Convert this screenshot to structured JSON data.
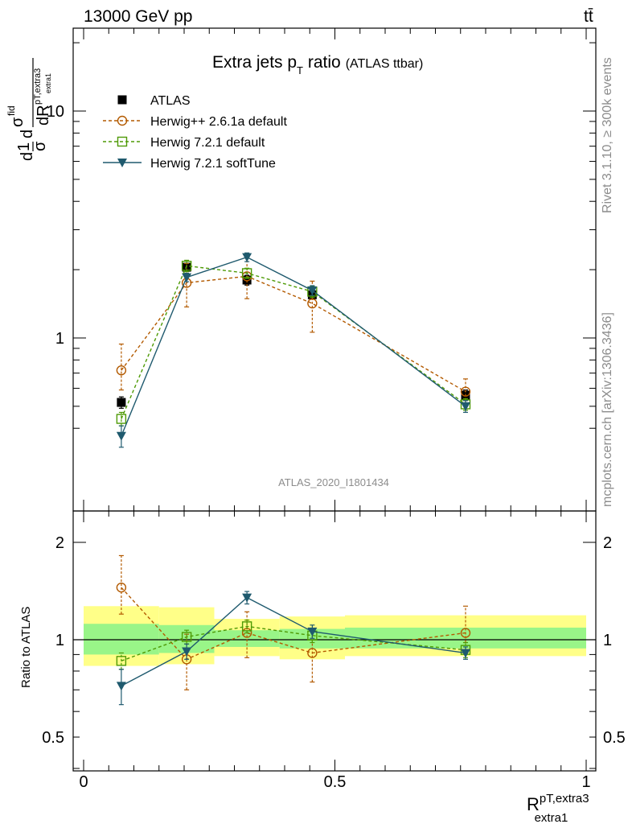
{
  "header": {
    "energy_label": "13000 GeV pp",
    "process_label": "tt̄"
  },
  "side_labels": {
    "rivet": "Rivet 3.1.10, ≥ 300k events",
    "mcplots": "mcplots.cern.ch [arXiv:1306.3436]"
  },
  "chart_data": [
    {
      "type": "line",
      "title_main": "Extra jets p",
      "title_sub": "T",
      "title_main2": " ratio",
      "title_paren": "(ATLAS ttbar)",
      "analysis_tag": "ATLAS_2020_I1801434",
      "ylabel_parts": [
        "d",
        "1",
        "σ",
        "d",
        "σ",
        "fid",
        "dR",
        "pT,extra3",
        "extra1"
      ],
      "yscale": "log",
      "ylim": [
        0.33,
        22
      ],
      "xlim": [
        0,
        1
      ],
      "y_tick_labels": [
        {
          "v": 1,
          "label": "1"
        },
        {
          "v": 10,
          "label": "10"
        }
      ],
      "legend_position": "top-left",
      "series": [
        {
          "name": "ATLAS",
          "color": "#000000",
          "marker": "square-filled",
          "dashed": false,
          "line": false,
          "x": [
            0.075,
            0.205,
            0.325,
            0.455,
            0.76
          ],
          "y": [
            0.52,
            2.05,
            1.8,
            1.55,
            0.56
          ],
          "err_lo": [
            0.03,
            0.08,
            0.09,
            0.07,
            0.03
          ],
          "err_hi": [
            0.03,
            0.08,
            0.09,
            0.07,
            0.03
          ]
        },
        {
          "name": "Herwig++ 2.6.1a default",
          "color": "#b35a00",
          "marker": "circle-open",
          "dashed": true,
          "line": true,
          "x": [
            0.075,
            0.205,
            0.325,
            0.455,
            0.76
          ],
          "y": [
            0.72,
            1.75,
            1.87,
            1.42,
            0.58
          ],
          "err_lo": [
            0.13,
            0.38,
            0.38,
            0.36,
            0.07
          ],
          "err_hi": [
            0.22,
            0.38,
            0.38,
            0.36,
            0.08
          ]
        },
        {
          "name": "Herwig 7.2.1 default",
          "color": "#4e9a06",
          "marker": "square-open",
          "dashed": true,
          "line": true,
          "x": [
            0.075,
            0.205,
            0.325,
            0.455,
            0.76
          ],
          "y": [
            0.44,
            2.08,
            1.93,
            1.6,
            0.51
          ],
          "err_lo": [
            0.03,
            0.12,
            0.1,
            0.09,
            0.03
          ],
          "err_hi": [
            0.03,
            0.12,
            0.1,
            0.09,
            0.03
          ]
        },
        {
          "name": "Herwig 7.2.1 softTune",
          "color": "#1f5a6e",
          "marker": "triangle-down",
          "dashed": false,
          "line": true,
          "x": [
            0.075,
            0.205,
            0.325,
            0.455,
            0.76
          ],
          "y": [
            0.37,
            1.85,
            2.27,
            1.62,
            0.5
          ],
          "err_lo": [
            0.04,
            0.08,
            0.1,
            0.08,
            0.03
          ],
          "err_hi": [
            0.04,
            0.08,
            0.1,
            0.08,
            0.03
          ]
        }
      ]
    },
    {
      "type": "line",
      "ylabel": "Ratio to ATLAS",
      "xlabel_main": "R",
      "xlabel_sup": "pT,extra3",
      "xlabel_sub": "extra1",
      "yscale": "log",
      "ylim": [
        0.4,
        2.5
      ],
      "xlim": [
        0,
        1
      ],
      "x_tick_labels": [
        {
          "v": 0,
          "label": "0"
        },
        {
          "v": 0.5,
          "label": "0.5"
        },
        {
          "v": 1,
          "label": "1"
        }
      ],
      "y_tick_labels": [
        {
          "v": 0.5,
          "label": "0.5"
        },
        {
          "v": 1,
          "label": "1"
        },
        {
          "v": 2,
          "label": "2"
        }
      ],
      "bands": [
        {
          "x0": 0,
          "x1": 0.15,
          "yellow": [
            0.83,
            1.27
          ],
          "green": [
            0.9,
            1.12
          ]
        },
        {
          "x0": 0.15,
          "x1": 0.26,
          "yellow": [
            0.84,
            1.26
          ],
          "green": [
            0.91,
            1.11
          ]
        },
        {
          "x0": 0.26,
          "x1": 0.39,
          "yellow": [
            0.89,
            1.16
          ],
          "green": [
            0.95,
            1.07
          ]
        },
        {
          "x0": 0.39,
          "x1": 0.52,
          "yellow": [
            0.87,
            1.18
          ],
          "green": [
            0.94,
            1.08
          ]
        },
        {
          "x0": 0.52,
          "x1": 1.0,
          "yellow": [
            0.89,
            1.19
          ],
          "green": [
            0.94,
            1.09
          ]
        }
      ],
      "series": [
        {
          "name": "Herwig++ 2.6.1a default",
          "color": "#b35a00",
          "marker": "circle-open",
          "dashed": true,
          "x": [
            0.075,
            0.205,
            0.325,
            0.455,
            0.76
          ],
          "y": [
            1.45,
            0.87,
            1.05,
            0.91,
            1.05
          ],
          "err_lo": [
            0.25,
            0.17,
            0.17,
            0.17,
            0.07
          ],
          "err_hi": [
            0.37,
            0.17,
            0.17,
            0.17,
            0.22
          ]
        },
        {
          "name": "Herwig 7.2.1 default",
          "color": "#4e9a06",
          "marker": "square-open",
          "dashed": true,
          "x": [
            0.075,
            0.205,
            0.325,
            0.455,
            0.76
          ],
          "y": [
            0.86,
            1.02,
            1.1,
            1.03,
            0.93
          ],
          "err_lo": [
            0.05,
            0.05,
            0.05,
            0.05,
            0.05
          ],
          "err_hi": [
            0.05,
            0.05,
            0.05,
            0.05,
            0.05
          ]
        },
        {
          "name": "Herwig 7.2.1 softTune",
          "color": "#1f5a6e",
          "marker": "triangle-down",
          "dashed": false,
          "x": [
            0.075,
            0.205,
            0.325,
            0.455,
            0.76
          ],
          "y": [
            0.72,
            0.92,
            1.35,
            1.06,
            0.91
          ],
          "err_lo": [
            0.09,
            0.05,
            0.06,
            0.05,
            0.04
          ],
          "err_hi": [
            0.09,
            0.05,
            0.06,
            0.05,
            0.04
          ]
        }
      ]
    }
  ]
}
